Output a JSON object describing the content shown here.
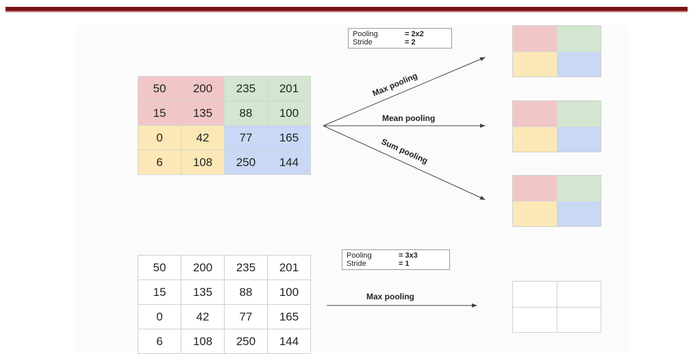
{
  "input_grid": [
    [
      "50",
      "200",
      "235",
      "201"
    ],
    [
      "15",
      "135",
      "88",
      "100"
    ],
    [
      "0",
      "42",
      "77",
      "165"
    ],
    [
      "6",
      "108",
      "250",
      "144"
    ]
  ],
  "input_grid_colors": [
    [
      "red",
      "red",
      "green",
      "green"
    ],
    [
      "red",
      "red",
      "green",
      "green"
    ],
    [
      "yellow",
      "yellow",
      "blue",
      "blue"
    ],
    [
      "yellow",
      "yellow",
      "blue",
      "blue"
    ]
  ],
  "config_top": {
    "pooling_label": "Pooling",
    "pooling_value": "= 2x2",
    "stride_label": "Stride",
    "stride_value": "= 2"
  },
  "config_bottom": {
    "pooling_label": "Pooling",
    "pooling_value": "= 3x3",
    "stride_label": "Stride",
    "stride_value": "= 1"
  },
  "operations": {
    "max": "Max pooling",
    "mean": "Mean pooling",
    "sum": "Sum pooling",
    "bottom": "Max pooling"
  },
  "colors": {
    "red": "#f1c6c6",
    "green": "#d3e6cf",
    "yellow": "#fbe8b6",
    "blue": "#c8d8f5",
    "header_rule": "#7b1414"
  }
}
